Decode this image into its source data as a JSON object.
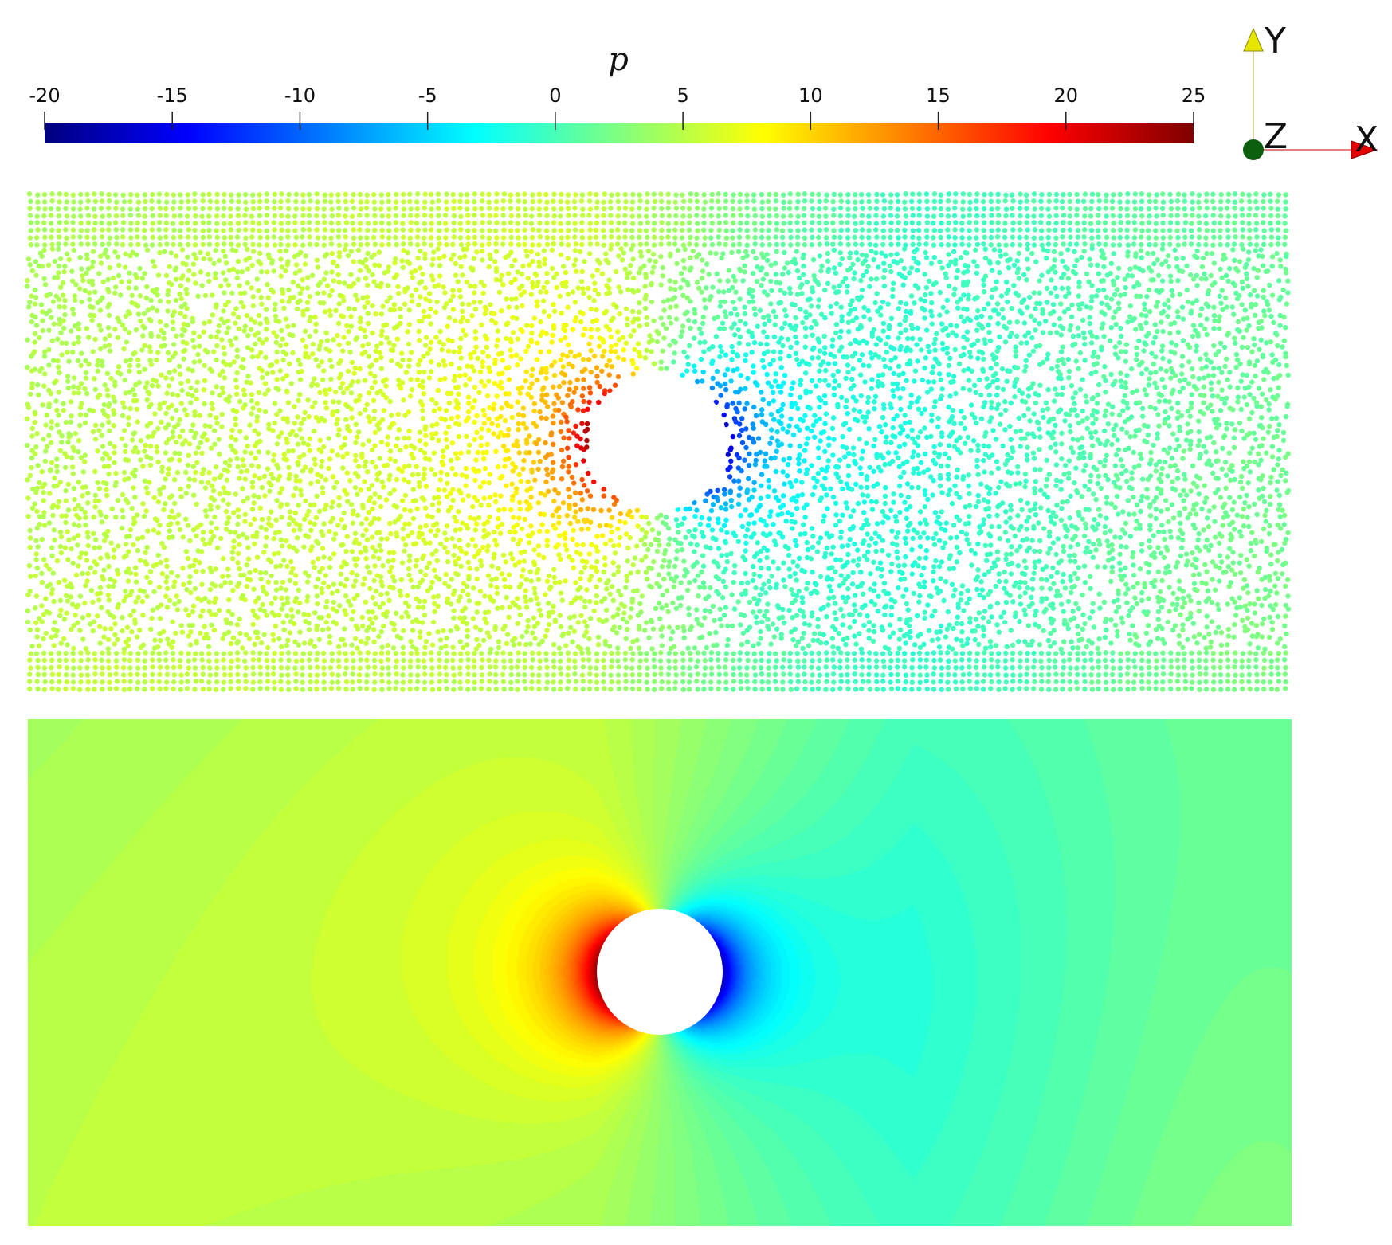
{
  "colorbar": {
    "variable": "p",
    "ticks": [
      "-20",
      "-15",
      "-10",
      "-5",
      "0",
      "5",
      "10",
      "15",
      "20",
      "25"
    ],
    "range": [
      -20,
      25
    ],
    "colormap": [
      "#00007f",
      "#0000ff",
      "#0080ff",
      "#00ffff",
      "#80ff80",
      "#ffff00",
      "#ff8000",
      "#ff0000",
      "#7f0000"
    ]
  },
  "axes": {
    "y": "Y",
    "z": "Z",
    "x": "X"
  },
  "colors": {
    "y_arrow": "#e6e600",
    "x_arrow": "#e60000",
    "z_dot": "#0b5e0b",
    "obstacle": "#ffffff"
  },
  "panels": [
    {
      "name": "particle-field",
      "kind": "particles"
    },
    {
      "name": "contour-field",
      "kind": "contour"
    }
  ]
}
